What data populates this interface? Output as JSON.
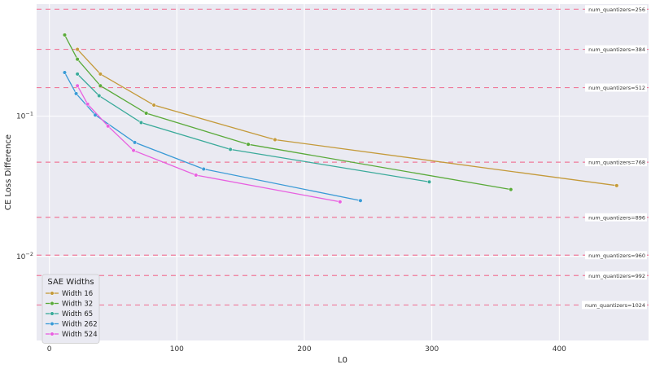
{
  "chart_data": {
    "type": "line",
    "title": "",
    "xlabel": "L0",
    "ylabel": "CE Loss Difference",
    "xlim": [
      -10,
      470
    ],
    "ylim_log10": [
      -2.6,
      -0.2
    ],
    "y_scale": "log",
    "grid": true,
    "x_ticks": [
      0,
      100,
      200,
      300,
      400
    ],
    "x_tick_labels": [
      "0",
      "100",
      "200",
      "300",
      "400"
    ],
    "y_ticks": [
      0.01,
      0.1
    ],
    "y_tick_labels": [
      {
        "base": "10",
        "exp": "−2"
      },
      {
        "base": "10",
        "exp": "−1"
      }
    ],
    "legend": {
      "title": "SAE Widths",
      "position": "lower-left"
    },
    "series": [
      {
        "name": "Width 16",
        "color": "#c49a3a",
        "x": [
          22,
          40,
          82,
          177,
          445
        ],
        "y": [
          0.3,
          0.2,
          0.12,
          0.068,
          0.032
        ]
      },
      {
        "name": "Width 32",
        "color": "#5aaa3a",
        "x": [
          12,
          22,
          40,
          76,
          156,
          362
        ],
        "y": [
          0.38,
          0.255,
          0.165,
          0.105,
          0.063,
          0.03
        ]
      },
      {
        "name": "Width 65",
        "color": "#3aaa9a",
        "x": [
          22,
          39,
          72,
          142,
          298
        ],
        "y": [
          0.2,
          0.14,
          0.09,
          0.058,
          0.034
        ]
      },
      {
        "name": "Width 262",
        "color": "#3a9ad6",
        "x": [
          12,
          21,
          36,
          67,
          121,
          244
        ],
        "y": [
          0.205,
          0.145,
          0.102,
          0.065,
          0.042,
          0.025
        ]
      },
      {
        "name": "Width 524",
        "color": "#e860e0",
        "x": [
          22,
          30,
          46,
          66,
          115,
          228
        ],
        "y": [
          0.165,
          0.122,
          0.085,
          0.057,
          0.038,
          0.0245
        ]
      }
    ],
    "reference_lines": [
      {
        "label": "num_quantizers=256",
        "y": 0.58
      },
      {
        "label": "num_quantizers=384",
        "y": 0.3
      },
      {
        "label": "num_quantizers=512",
        "y": 0.16
      },
      {
        "label": "num_quantizers=768",
        "y": 0.047
      },
      {
        "label": "num_quantizers=896",
        "y": 0.019
      },
      {
        "label": "num_quantizers=960",
        "y": 0.0102
      },
      {
        "label": "num_quantizers=992",
        "y": 0.0073
      },
      {
        "label": "num_quantizers=1024",
        "y": 0.0045
      }
    ],
    "reference_line_color": "#f07a9a"
  }
}
